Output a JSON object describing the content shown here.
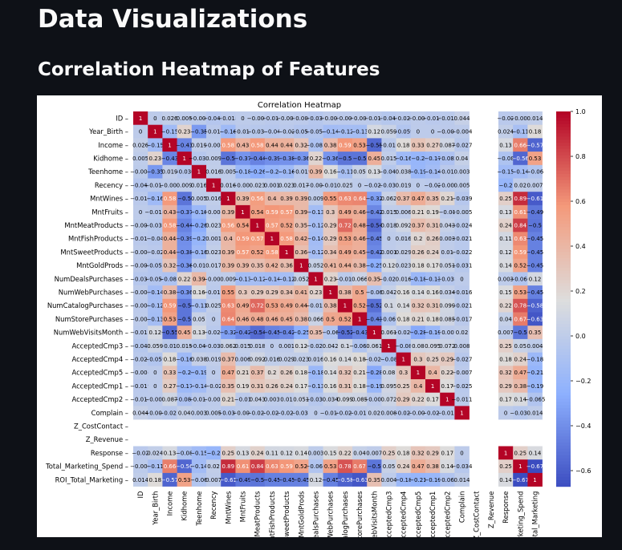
{
  "page": {
    "title": "Data Visualizations",
    "subtitle": "Correlation Heatmap of Features"
  },
  "colors": {
    "background": "#0e1117",
    "figure": "#ffffff",
    "text": "#fafafa",
    "cmap_low": "#3b4cc0",
    "cmap_mid": "#dddddd",
    "cmap_high": "#b40426"
  },
  "chart_data": {
    "type": "heatmap",
    "title": "Correlation Heatmap",
    "colormap": "coolwarm",
    "annotated": true,
    "vmin": -0.67,
    "vmax": 1.0,
    "colorbar_ticks": [
      1.0,
      0.8,
      0.6,
      0.4,
      0.2,
      0.0,
      -0.2,
      -0.4,
      -0.6
    ],
    "colorbar_tick_labels": [
      "1.0",
      "0.8",
      "0.6",
      "0.4",
      "0.2",
      "0.0",
      "−0.2",
      "−0.4",
      "−0.6"
    ],
    "labels": [
      "ID",
      "Year_Birth",
      "Income",
      "Kidhome",
      "Teenhome",
      "Recency",
      "MntWines",
      "MntFruits",
      "MntMeatProducts",
      "MntFishProducts",
      "MntSweetProducts",
      "MntGoldProds",
      "NumDealsPurchases",
      "NumWebPurchases",
      "NumCatalogPurchases",
      "NumStorePurchases",
      "NumWebVisitsMonth",
      "AcceptedCmp3",
      "AcceptedCmp4",
      "AcceptedCmp5",
      "AcceptedCmp1",
      "AcceptedCmp2",
      "Complain",
      "Z_CostContact",
      "Z_Revenue",
      "Response",
      "Total_Marketing_Spend",
      "ROI_Total_Marketing"
    ],
    "values": [
      [
        1,
        0.0,
        0.026,
        0.005,
        -0.005,
        -0.045,
        -0.018,
        0.0,
        -0.005,
        -0.017,
        -0.002,
        -0.008,
        -0.036,
        -0.002,
        -0.009,
        -0.003,
        -0.012,
        -0.043,
        -0.023,
        -0.004,
        -0.019,
        -0.014,
        0.044,
        null,
        null,
        -0.02,
        -0.006,
        0.014
      ],
      [
        0.0,
        1,
        -0.15,
        0.23,
        -0.35,
        -0.016,
        -0.16,
        -0.018,
        -0.031,
        -0.04,
        -0.02,
        -0.055,
        -0.054,
        -0.14,
        -0.12,
        -0.13,
        0.12,
        0.059,
        -0.059,
        0.0,
        0.0,
        -0.007,
        -0.004,
        null,
        null,
        0.024,
        -0.11,
        0.18
      ],
      [
        0.026,
        -0.15,
        1,
        -0.43,
        0.019,
        -0.004,
        0.58,
        0.43,
        0.58,
        0.44,
        0.44,
        0.32,
        -0.083,
        0.38,
        0.59,
        0.53,
        -0.55,
        -0.016,
        0.18,
        0.33,
        0.27,
        0.087,
        -0.027,
        null,
        null,
        0.13,
        0.66,
        -0.57
      ],
      [
        0.005,
        0.23,
        -0.43,
        1,
        -0.036,
        0.009,
        -0.5,
        -0.37,
        -0.44,
        -0.39,
        -0.38,
        -0.36,
        0.22,
        -0.36,
        -0.5,
        -0.5,
        0.45,
        0.015,
        -0.16,
        -0.2,
        -0.17,
        -0.082,
        0.04,
        null,
        null,
        -0.08,
        -0.56,
        0.53
      ],
      [
        -0.005,
        -0.35,
        0.019,
        -0.036,
        1,
        0.016,
        0.005,
        -0.18,
        -0.26,
        -0.2,
        -0.16,
        -0.019,
        0.39,
        0.16,
        -0.11,
        0.05,
        0.13,
        -0.042,
        0.038,
        -0.19,
        -0.14,
        -0.016,
        0.003,
        null,
        null,
        -0.15,
        -0.14,
        -0.06
      ],
      [
        -0.045,
        -0.016,
        -0.004,
        0.009,
        0.016,
        1,
        0.016,
        -0.004,
        0.023,
        0.001,
        0.023,
        0.017,
        -0.001,
        -0.011,
        0.025,
        0.0,
        -0.022,
        -0.033,
        0.019,
        0.0,
        -0.02,
        -0.002,
        0.005,
        null,
        null,
        -0.2,
        0.02,
        0.007
      ],
      [
        -0.018,
        -0.16,
        0.58,
        -0.5,
        0.005,
        0.016,
        1,
        0.39,
        0.56,
        0.4,
        0.39,
        0.39,
        0.009,
        0.55,
        0.63,
        0.64,
        -0.32,
        0.062,
        0.37,
        0.47,
        0.35,
        0.21,
        -0.039,
        null,
        null,
        0.25,
        0.89,
        -0.61
      ],
      [
        0.0,
        -0.018,
        0.43,
        -0.37,
        -0.18,
        -0.004,
        0.39,
        1,
        0.54,
        0.59,
        0.57,
        0.39,
        -0.13,
        0.3,
        0.49,
        0.46,
        -0.42,
        0.015,
        0.006,
        0.21,
        0.19,
        -0.01,
        -0.005,
        null,
        null,
        0.13,
        0.61,
        -0.49
      ],
      [
        -0.005,
        -0.031,
        0.58,
        -0.44,
        -0.26,
        0.023,
        0.56,
        0.54,
        1,
        0.57,
        0.52,
        0.35,
        -0.12,
        0.29,
        0.72,
        0.48,
        -0.54,
        0.018,
        0.092,
        0.37,
        0.31,
        0.043,
        -0.024,
        null,
        null,
        0.24,
        0.84,
        -0.5
      ],
      [
        -0.017,
        -0.04,
        0.44,
        -0.39,
        -0.2,
        0.001,
        0.4,
        0.59,
        0.57,
        1,
        0.58,
        0.42,
        -0.14,
        0.29,
        0.53,
        0.46,
        -0.45,
        0.0,
        0.016,
        0.2,
        0.26,
        0.003,
        -0.021,
        null,
        null,
        0.11,
        0.63,
        -0.45
      ],
      [
        -0.002,
        -0.02,
        0.44,
        -0.38,
        -0.16,
        0.023,
        0.39,
        0.57,
        0.52,
        0.58,
        1,
        0.36,
        -0.12,
        0.34,
        0.49,
        0.45,
        -0.42,
        0.001,
        0.029,
        0.26,
        0.24,
        0.01,
        -0.022,
        null,
        null,
        0.12,
        0.59,
        -0.45
      ],
      [
        -0.008,
        -0.055,
        0.32,
        -0.36,
        -0.019,
        0.017,
        0.39,
        0.39,
        0.35,
        0.42,
        0.36,
        1,
        0.052,
        0.41,
        0.44,
        0.38,
        -0.25,
        0.12,
        0.023,
        0.18,
        0.17,
        0.051,
        -0.031,
        null,
        null,
        0.14,
        0.52,
        -0.45
      ],
      [
        -0.036,
        -0.054,
        -0.083,
        0.22,
        0.39,
        -0.001,
        0.009,
        -0.13,
        -0.12,
        -0.14,
        -0.12,
        0.052,
        1,
        0.23,
        -0.012,
        0.066,
        0.35,
        -0.023,
        0.016,
        -0.18,
        -0.13,
        -0.038,
        0.0,
        null,
        null,
        0.003,
        -0.066,
        0.12
      ],
      [
        -0.002,
        -0.14,
        0.38,
        -0.36,
        0.16,
        -0.011,
        0.55,
        0.3,
        0.29,
        0.29,
        0.34,
        0.41,
        0.23,
        1,
        0.38,
        0.5,
        -0.06,
        0.042,
        0.16,
        0.14,
        0.16,
        0.034,
        -0.016,
        null,
        null,
        0.15,
        0.53,
        -0.45
      ],
      [
        -0.009,
        -0.12,
        0.59,
        -0.5,
        -0.11,
        0.025,
        0.63,
        0.49,
        0.72,
        0.53,
        0.49,
        0.44,
        -0.012,
        0.38,
        1,
        0.52,
        -0.52,
        0.1,
        0.14,
        0.32,
        0.31,
        0.099,
        -0.021,
        null,
        null,
        0.22,
        0.78,
        -0.58
      ],
      [
        -0.003,
        -0.13,
        0.53,
        -0.5,
        0.05,
        0.0,
        0.64,
        0.46,
        0.48,
        0.46,
        0.45,
        0.38,
        0.066,
        0.5,
        0.52,
        1,
        -0.43,
        -0.069,
        0.18,
        0.21,
        0.18,
        0.085,
        -0.017,
        null,
        null,
        0.04,
        0.67,
        -0.63
      ],
      [
        -0.012,
        0.12,
        -0.55,
        0.45,
        0.13,
        -0.022,
        -0.32,
        -0.42,
        -0.54,
        -0.45,
        -0.42,
        -0.25,
        0.35,
        -0.06,
        -0.52,
        -0.43,
        1,
        0.061,
        -0.029,
        -0.28,
        -0.19,
        -0.007,
        0.02,
        null,
        null,
        0.007,
        -0.5,
        0.35
      ],
      [
        -0.043,
        0.059,
        -0.016,
        0.015,
        -0.042,
        -0.033,
        0.062,
        0.015,
        0.018,
        0.0,
        0.001,
        0.12,
        -0.023,
        0.042,
        0.1,
        -0.069,
        0.061,
        1,
        -0.08,
        0.08,
        0.095,
        0.072,
        0.008,
        null,
        null,
        0.25,
        0.05,
        0.004
      ],
      [
        -0.023,
        -0.059,
        0.18,
        -0.16,
        0.038,
        0.019,
        0.37,
        0.006,
        0.092,
        0.016,
        0.029,
        0.023,
        0.016,
        0.16,
        0.14,
        0.18,
        -0.029,
        -0.08,
        1,
        0.3,
        0.25,
        0.29,
        -0.027,
        null,
        null,
        0.18,
        0.24,
        -0.18
      ],
      [
        -0.004,
        0.0,
        0.33,
        -0.2,
        -0.19,
        0.0,
        0.47,
        0.21,
        0.37,
        0.2,
        0.26,
        0.18,
        -0.18,
        0.14,
        0.32,
        0.21,
        -0.28,
        0.08,
        0.3,
        1,
        0.4,
        0.22,
        -0.007,
        null,
        null,
        0.32,
        0.47,
        -0.21
      ],
      [
        -0.019,
        0.0,
        0.27,
        -0.17,
        -0.14,
        -0.02,
        0.35,
        0.19,
        0.31,
        0.26,
        0.24,
        0.17,
        -0.13,
        0.16,
        0.31,
        0.18,
        -0.19,
        0.095,
        0.25,
        0.4,
        1,
        0.17,
        -0.025,
        null,
        null,
        0.29,
        0.38,
        -0.19
      ],
      [
        -0.014,
        -0.007,
        0.087,
        -0.082,
        -0.016,
        -0.002,
        0.21,
        -0.01,
        0.043,
        0.003,
        0.01,
        0.051,
        -0.038,
        0.034,
        0.099,
        0.085,
        -0.007,
        0.072,
        0.29,
        0.22,
        0.17,
        1,
        -0.011,
        null,
        null,
        0.17,
        0.14,
        -0.065
      ],
      [
        0.044,
        -0.004,
        -0.027,
        0.04,
        0.003,
        0.005,
        -0.039,
        -0.005,
        -0.024,
        -0.021,
        -0.022,
        -0.031,
        0.0,
        -0.016,
        -0.021,
        -0.017,
        0.02,
        0.008,
        -0.027,
        -0.007,
        -0.025,
        -0.011,
        1,
        null,
        null,
        0.0,
        -0.034,
        0.014
      ],
      [
        null,
        null,
        null,
        null,
        null,
        null,
        null,
        null,
        null,
        null,
        null,
        null,
        null,
        null,
        null,
        null,
        null,
        null,
        null,
        null,
        null,
        null,
        null,
        null,
        null,
        null,
        null,
        null
      ],
      [
        null,
        null,
        null,
        null,
        null,
        null,
        null,
        null,
        null,
        null,
        null,
        null,
        null,
        null,
        null,
        null,
        null,
        null,
        null,
        null,
        null,
        null,
        null,
        null,
        null,
        null,
        null,
        null
      ],
      [
        -0.02,
        0.024,
        0.13,
        -0.08,
        -0.15,
        -0.2,
        0.25,
        0.13,
        0.24,
        0.11,
        0.12,
        0.14,
        0.003,
        0.15,
        0.22,
        0.04,
        0.007,
        0.25,
        0.18,
        0.32,
        0.29,
        0.17,
        0.0,
        null,
        null,
        1,
        0.25,
        0.14
      ],
      [
        -0.006,
        -0.11,
        0.66,
        -0.56,
        -0.14,
        0.02,
        0.89,
        0.61,
        0.84,
        0.63,
        0.59,
        0.52,
        -0.066,
        0.53,
        0.78,
        0.67,
        -0.5,
        0.05,
        0.24,
        0.47,
        0.38,
        0.14,
        -0.034,
        null,
        null,
        0.25,
        1,
        -0.67
      ],
      [
        0.014,
        0.18,
        -0.57,
        0.53,
        -0.06,
        0.007,
        -0.61,
        -0.49,
        -0.5,
        -0.45,
        -0.45,
        -0.45,
        0.12,
        -0.45,
        -0.58,
        -0.63,
        0.35,
        0.004,
        -0.18,
        -0.21,
        -0.19,
        -0.065,
        0.014,
        null,
        null,
        0.14,
        -0.67,
        1
      ]
    ]
  }
}
